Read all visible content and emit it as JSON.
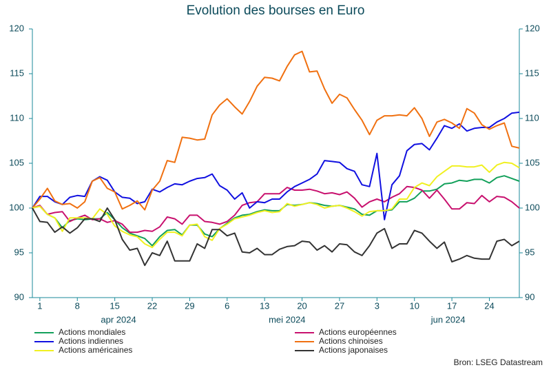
{
  "chart_data": {
    "type": "line",
    "title": "Evolution des bourses en Euro",
    "source": "Bron: LSEG Datastream",
    "x": [
      "2024-03-29",
      "2024-04-01",
      "2024-04-02",
      "2024-04-03",
      "2024-04-04",
      "2024-04-05",
      "2024-04-08",
      "2024-04-09",
      "2024-04-10",
      "2024-04-11",
      "2024-04-12",
      "2024-04-15",
      "2024-04-16",
      "2024-04-17",
      "2024-04-18",
      "2024-04-19",
      "2024-04-22",
      "2024-04-23",
      "2024-04-24",
      "2024-04-25",
      "2024-04-26",
      "2024-04-29",
      "2024-04-30",
      "2024-05-01",
      "2024-05-02",
      "2024-05-03",
      "2024-05-06",
      "2024-05-07",
      "2024-05-08",
      "2024-05-09",
      "2024-05-10",
      "2024-05-13",
      "2024-05-14",
      "2024-05-15",
      "2024-05-16",
      "2024-05-17",
      "2024-05-20",
      "2024-05-21",
      "2024-05-22",
      "2024-05-23",
      "2024-05-24",
      "2024-05-27",
      "2024-05-28",
      "2024-05-29",
      "2024-05-30",
      "2024-05-31",
      "2024-06-03",
      "2024-06-04",
      "2024-06-05",
      "2024-06-06",
      "2024-06-07",
      "2024-06-10",
      "2024-06-11",
      "2024-06-12",
      "2024-06-13",
      "2024-06-14",
      "2024-06-17",
      "2024-06-18",
      "2024-06-19",
      "2024-06-20",
      "2024-06-21",
      "2024-06-24",
      "2024-06-25",
      "2024-06-26",
      "2024-06-27",
      "2024-06-28"
    ],
    "xticks": [
      {
        "value": "2024-04-01",
        "label": "1"
      },
      {
        "value": "2024-04-08",
        "label": "8"
      },
      {
        "value": "2024-04-15",
        "label": "15"
      },
      {
        "value": "2024-04-22",
        "label": "22"
      },
      {
        "value": "2024-04-29",
        "label": "29"
      },
      {
        "value": "2024-05-06",
        "label": "6"
      },
      {
        "value": "2024-05-13",
        "label": "13"
      },
      {
        "value": "2024-05-20",
        "label": "20"
      },
      {
        "value": "2024-05-27",
        "label": "27"
      },
      {
        "value": "2024-06-03",
        "label": "3"
      },
      {
        "value": "2024-06-10",
        "label": "10"
      },
      {
        "value": "2024-06-17",
        "label": "17"
      },
      {
        "value": "2024-06-24",
        "label": "24"
      }
    ],
    "month_labels": [
      {
        "value": "2024-04",
        "label": "apr 2024"
      },
      {
        "value": "2024-05",
        "label": "mei 2024"
      },
      {
        "value": "2024-06",
        "label": "jun 2024"
      }
    ],
    "ylim": [
      90,
      120
    ],
    "yticks": [
      90,
      95,
      100,
      105,
      110,
      115,
      120
    ],
    "y2lim": [
      90,
      120
    ],
    "y2ticks": [
      90,
      95,
      100,
      105,
      110,
      115,
      120
    ],
    "grid": false,
    "legend": "bottom",
    "series": [
      {
        "name": "Actions mondiales",
        "color": "#12a05a",
        "values": [
          100,
          100.2,
          99.3,
          98.9,
          97.8,
          98.6,
          98.8,
          98.7,
          98.8,
          98.8,
          99.5,
          98.7,
          97.8,
          97.2,
          96.9,
          96.6,
          95.8,
          96.8,
          97.5,
          97.6,
          97.0,
          98.1,
          98.1,
          97.1,
          96.8,
          97.7,
          98.3,
          98.9,
          99.2,
          99.3,
          99.6,
          99.8,
          99.7,
          99.7,
          100.4,
          100.3,
          100.4,
          100.6,
          100.5,
          100.3,
          100.2,
          100.3,
          100.1,
          99.9,
          99.3,
          99.2,
          99.7,
          99.7,
          99.8,
          100.7,
          100.7,
          101.1,
          101.9,
          101.9,
          102.1,
          102.7,
          102.8,
          103.1,
          103.0,
          103.2,
          103.2,
          102.8,
          103.4,
          103.6,
          103.3,
          103.0
        ]
      },
      {
        "name": "Actions européennes",
        "color": "#c8106e",
        "values": [
          100,
          100.3,
          99.3,
          99.5,
          99.6,
          98.5,
          98.9,
          99.2,
          98.7,
          98.8,
          98.4,
          98.6,
          98.2,
          97.3,
          97.3,
          97.5,
          97.4,
          97.9,
          99.0,
          98.8,
          98.2,
          99.2,
          99.2,
          98.5,
          98.4,
          98.2,
          98.5,
          99.2,
          100.3,
          100.6,
          100.7,
          101.6,
          101.6,
          101.6,
          102.3,
          102.0,
          102.0,
          102.1,
          101.9,
          101.6,
          101.7,
          101.5,
          101.8,
          101.1,
          100.1,
          100.7,
          101.0,
          100.7,
          101.2,
          101.6,
          102.4,
          102.3,
          102.0,
          101.1,
          102.0,
          101.0,
          99.9,
          99.9,
          100.6,
          100.5,
          101.4,
          100.7,
          101.3,
          101.2,
          100.7,
          100.0
        ]
      },
      {
        "name": "Actions indiennes",
        "color": "#1010e0",
        "values": [
          100,
          101.3,
          101.3,
          100.7,
          100.4,
          101.2,
          101.4,
          101.3,
          103.0,
          103.5,
          103.1,
          101.8,
          101.2,
          101.1,
          100.5,
          100.7,
          102.1,
          101.8,
          102.3,
          102.7,
          102.6,
          103.0,
          103.3,
          103.4,
          103.8,
          102.5,
          102.0,
          101.0,
          101.7,
          100.0,
          100.7,
          100.6,
          101.0,
          101.0,
          101.8,
          102.4,
          102.8,
          103.2,
          103.8,
          105.3,
          105.2,
          105.1,
          104.4,
          104.1,
          102.6,
          102.4,
          106.1,
          98.7,
          102.6,
          103.6,
          106.4,
          107.1,
          107.2,
          106.5,
          107.8,
          109.2,
          108.9,
          109.4,
          108.6,
          108.9,
          109.0,
          109.0,
          109.6,
          110.0,
          110.6,
          110.7
        ]
      },
      {
        "name": "Actions chinoises",
        "color": "#f07010",
        "values": [
          100,
          101.0,
          102.2,
          100.8,
          100.4,
          100.5,
          100.0,
          100.7,
          103.0,
          103.4,
          102.2,
          101.8,
          99.9,
          100.3,
          100.8,
          99.8,
          102.0,
          103.0,
          105.3,
          105.1,
          107.9,
          107.8,
          107.6,
          107.7,
          110.4,
          111.5,
          112.2,
          111.3,
          110.5,
          111.9,
          113.6,
          114.6,
          114.5,
          114.2,
          115.8,
          117.1,
          117.5,
          115.2,
          115.3,
          113.3,
          111.7,
          112.7,
          112.3,
          111.0,
          109.8,
          108.2,
          109.8,
          110.3,
          110.3,
          110.4,
          110.3,
          111.2,
          110.0,
          108.0,
          109.6,
          109.9,
          109.5,
          108.9,
          111.1,
          110.6,
          109.3,
          108.8,
          109.2,
          109.5,
          106.9,
          106.7
        ]
      },
      {
        "name": "Actions américaines",
        "color": "#f0f020",
        "values": [
          100,
          100.2,
          99.3,
          98.9,
          97.4,
          98.9,
          98.9,
          98.9,
          98.8,
          99.9,
          99.3,
          98.0,
          97.4,
          97.0,
          96.8,
          96.0,
          95.6,
          96.5,
          97.3,
          97.3,
          96.9,
          98.1,
          98.2,
          96.8,
          96.4,
          97.7,
          98.2,
          98.8,
          99.0,
          99.2,
          99.5,
          99.7,
          99.5,
          99.6,
          100.5,
          100.2,
          100.4,
          100.6,
          100.4,
          100.0,
          100.2,
          100.3,
          100.0,
          99.6,
          99.1,
          99.6,
          99.7,
          99.7,
          99.9,
          101.0,
          101.0,
          102.3,
          102.8,
          102.5,
          103.5,
          104.1,
          104.7,
          104.7,
          104.6,
          104.6,
          104.8,
          104.0,
          104.8,
          105.1,
          105.0,
          104.5
        ]
      },
      {
        "name": "Actions japonaises",
        "color": "#333333",
        "values": [
          100,
          98.5,
          98.4,
          97.3,
          97.9,
          97.2,
          97.8,
          98.8,
          98.8,
          98.5,
          100.0,
          98.7,
          96.5,
          95.3,
          95.5,
          93.6,
          95.0,
          94.7,
          96.3,
          94.1,
          94.1,
          94.1,
          96.0,
          95.5,
          97.6,
          97.6,
          96.9,
          97.2,
          95.1,
          95.0,
          95.5,
          94.8,
          94.8,
          95.4,
          95.7,
          95.8,
          96.3,
          96.2,
          95.3,
          95.8,
          95.1,
          96.0,
          95.9,
          95.1,
          94.7,
          95.8,
          97.2,
          97.7,
          95.5,
          96.0,
          96.0,
          97.5,
          97.2,
          96.3,
          95.5,
          96.2,
          94.0,
          94.3,
          94.7,
          94.4,
          94.3,
          94.3,
          96.3,
          96.5,
          95.8,
          96.3
        ]
      }
    ]
  }
}
